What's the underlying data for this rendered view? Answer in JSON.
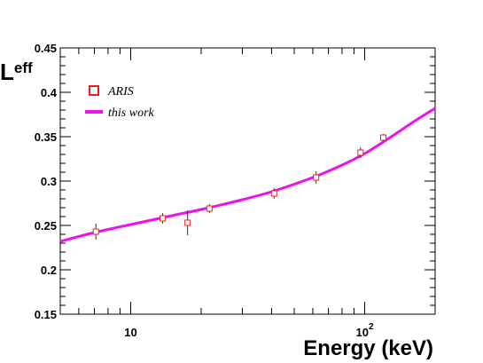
{
  "chart_data": {
    "type": "scatter",
    "title": "",
    "xlabel": "Energy (keV)",
    "ylabel_main": "L",
    "ylabel_sub": "eff",
    "xscale": "log",
    "xlim": [
      5,
      200
    ],
    "ylim": [
      0.15,
      0.45
    ],
    "grid": false,
    "legend_position": "top-left",
    "x_tick_labels": [
      {
        "value": 10,
        "base": "10",
        "exp": ""
      },
      {
        "value": 100,
        "base": "10",
        "exp": "2"
      }
    ],
    "y_tick_labels": [
      "0.15",
      "0.2",
      "0.25",
      "0.3",
      "0.35",
      "0.4",
      "0.45"
    ],
    "y_ticks": [
      0.15,
      0.2,
      0.25,
      0.3,
      0.35,
      0.4,
      0.45
    ],
    "series": [
      {
        "name": "ARIS",
        "kind": "points",
        "color": "#e8211f",
        "marker": "open-square",
        "points": [
          {
            "x": 7.1,
            "y": 0.243,
            "yerr": 0.009
          },
          {
            "x": 13.7,
            "y": 0.258,
            "yerr": 0.006
          },
          {
            "x": 17.5,
            "y": 0.253,
            "yerr": 0.014
          },
          {
            "x": 21.7,
            "y": 0.269,
            "yerr": 0.005
          },
          {
            "x": 41.0,
            "y": 0.286,
            "yerr": 0.006
          },
          {
            "x": 62.0,
            "y": 0.304,
            "yerr": 0.007
          },
          {
            "x": 96.0,
            "y": 0.332,
            "yerr": 0.006
          },
          {
            "x": 120.0,
            "y": 0.349,
            "yerr": 0.004
          }
        ]
      },
      {
        "name": "this work",
        "kind": "line",
        "color": "#ee11ee",
        "points": [
          {
            "x": 5,
            "y": 0.232
          },
          {
            "x": 7,
            "y": 0.242
          },
          {
            "x": 10,
            "y": 0.251
          },
          {
            "x": 15,
            "y": 0.261
          },
          {
            "x": 20,
            "y": 0.268
          },
          {
            "x": 30,
            "y": 0.279
          },
          {
            "x": 40,
            "y": 0.288
          },
          {
            "x": 60,
            "y": 0.304
          },
          {
            "x": 80,
            "y": 0.318
          },
          {
            "x": 100,
            "y": 0.331
          },
          {
            "x": 130,
            "y": 0.35
          },
          {
            "x": 160,
            "y": 0.366
          },
          {
            "x": 200,
            "y": 0.382
          }
        ]
      }
    ]
  }
}
